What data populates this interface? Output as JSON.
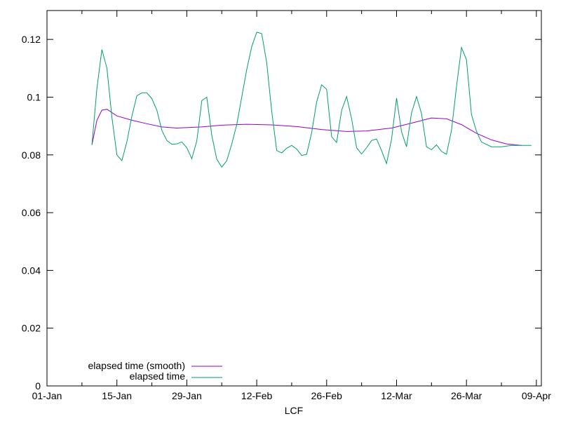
{
  "chart_data": {
    "type": "line",
    "title": "",
    "xlabel": "LCF",
    "ylabel": "",
    "xlim": [
      "2016-01-01",
      "2016-04-09"
    ],
    "ylim": [
      0,
      0.13
    ],
    "x_tick_labels": [
      "01-Jan",
      "15-Jan",
      "29-Jan",
      "12-Feb",
      "26-Feb",
      "12-Mar",
      "26-Mar",
      "09-Apr"
    ],
    "y_tick_labels": [
      "0",
      "0.02",
      "0.04",
      "0.06",
      "0.08",
      "0.1",
      "0.12"
    ],
    "y_ticks": [
      0,
      0.02,
      0.04,
      0.06,
      0.08,
      0.1,
      0.12
    ],
    "grid": false,
    "legend_position": "bottom-left",
    "series": [
      {
        "name": "elapsed time (smooth)",
        "color": "#9400d3",
        "x": [
          "2016-01-10",
          "2016-01-11",
          "2016-01-12",
          "2016-01-13",
          "2016-01-15",
          "2016-01-18",
          "2016-01-21",
          "2016-01-24",
          "2016-01-27",
          "2016-02-01",
          "2016-02-05",
          "2016-02-10",
          "2016-02-15",
          "2016-02-20",
          "2016-02-25",
          "2016-03-01",
          "2016-03-05",
          "2016-03-10",
          "2016-03-14",
          "2016-03-18",
          "2016-03-21",
          "2016-03-24",
          "2016-03-27",
          "2016-03-30",
          "2016-04-02",
          "2016-04-05"
        ],
        "y": [
          0.0835,
          0.092,
          0.0955,
          0.0958,
          0.0935,
          0.092,
          0.0908,
          0.0897,
          0.0893,
          0.0897,
          0.0903,
          0.0906,
          0.0904,
          0.0898,
          0.0888,
          0.0881,
          0.0883,
          0.0893,
          0.091,
          0.0928,
          0.0925,
          0.0905,
          0.0875,
          0.0852,
          0.0838,
          0.0833
        ]
      },
      {
        "name": "elapsed time",
        "color": "#009e73",
        "x": [
          "2016-01-10",
          "2016-01-11",
          "2016-01-12",
          "2016-01-13",
          "2016-01-14",
          "2016-01-15",
          "2016-01-16",
          "2016-01-17",
          "2016-01-18",
          "2016-01-19",
          "2016-01-20",
          "2016-01-21",
          "2016-01-22",
          "2016-01-23",
          "2016-01-24",
          "2016-01-25",
          "2016-01-26",
          "2016-01-27",
          "2016-01-28",
          "2016-01-29",
          "2016-01-30",
          "2016-01-31",
          "2016-02-01",
          "2016-02-02",
          "2016-02-03",
          "2016-02-04",
          "2016-02-05",
          "2016-02-06",
          "2016-02-07",
          "2016-02-08",
          "2016-02-09",
          "2016-02-10",
          "2016-02-11",
          "2016-02-12",
          "2016-02-13",
          "2016-02-14",
          "2016-02-15",
          "2016-02-16",
          "2016-02-17",
          "2016-02-18",
          "2016-02-19",
          "2016-02-20",
          "2016-02-21",
          "2016-02-22",
          "2016-02-23",
          "2016-02-24",
          "2016-02-25",
          "2016-02-26",
          "2016-02-27",
          "2016-02-28",
          "2016-02-29",
          "2016-03-01",
          "2016-03-02",
          "2016-03-03",
          "2016-03-04",
          "2016-03-05",
          "2016-03-06",
          "2016-03-07",
          "2016-03-08",
          "2016-03-09",
          "2016-03-10",
          "2016-03-11",
          "2016-03-12",
          "2016-03-13",
          "2016-03-14",
          "2016-03-15",
          "2016-03-16",
          "2016-03-17",
          "2016-03-18",
          "2016-03-19",
          "2016-03-20",
          "2016-03-21",
          "2016-03-22",
          "2016-03-23",
          "2016-03-24",
          "2016-03-25",
          "2016-03-26",
          "2016-03-27",
          "2016-03-28",
          "2016-03-30",
          "2016-04-01",
          "2016-04-03",
          "2016-04-05",
          "2016-04-07"
        ],
        "y": [
          0.0835,
          0.103,
          0.1165,
          0.11,
          0.093,
          0.08,
          0.078,
          0.0845,
          0.0935,
          0.1005,
          0.1015,
          0.1015,
          0.0995,
          0.0955,
          0.0885,
          0.085,
          0.0837,
          0.0838,
          0.0845,
          0.0825,
          0.0787,
          0.0848,
          0.0988,
          0.1,
          0.0868,
          0.0785,
          0.0758,
          0.078,
          0.0838,
          0.0905,
          0.1,
          0.1095,
          0.1175,
          0.1225,
          0.122,
          0.112,
          0.095,
          0.0815,
          0.0807,
          0.0823,
          0.0833,
          0.082,
          0.0798,
          0.0802,
          0.0877,
          0.0983,
          0.1043,
          0.1027,
          0.0863,
          0.0843,
          0.0955,
          0.1002,
          0.0925,
          0.0825,
          0.0803,
          0.0825,
          0.085,
          0.0855,
          0.0815,
          0.077,
          0.0855,
          0.0997,
          0.088,
          0.0828,
          0.0945,
          0.1002,
          0.0943,
          0.0828,
          0.0818,
          0.0835,
          0.0812,
          0.0802,
          0.0885,
          0.1035,
          0.1172,
          0.113,
          0.094,
          0.0882,
          0.0845,
          0.0828,
          0.0828,
          0.0833,
          0.0833,
          0.0833
        ]
      }
    ]
  }
}
